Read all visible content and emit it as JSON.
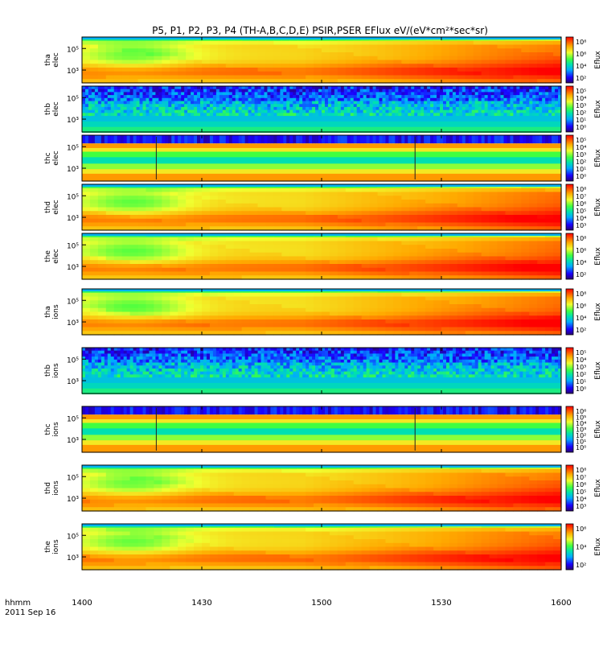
{
  "title": "P5, P1, P2, P3, P4  (TH-A,B,C,D,E)  PSIR,PSER EFlux eV/(eV*cm²*sec*sr)",
  "time_axis": {
    "label_line1": "hhmm",
    "label_line2": "2011 Sep 16",
    "ticks": [
      "1400",
      "1430",
      "1500",
      "1530",
      "1600"
    ]
  },
  "colorbar_label": "Eflux",
  "chart_data": [
    {
      "type": "heatmap",
      "probe": "tha",
      "species": "elec",
      "ylabel": [
        "tha",
        "elec"
      ],
      "yticks": [
        "10⁵",
        "10³"
      ],
      "cbar_ticks": [
        "10⁸",
        "10⁶",
        "10⁴",
        "10²"
      ],
      "pattern": "smooth"
    },
    {
      "type": "heatmap",
      "probe": "thb",
      "species": "elec",
      "ylabel": [
        "thb",
        "elec"
      ],
      "yticks": [
        "10⁵",
        "10³"
      ],
      "cbar_ticks": [
        "10⁵",
        "10⁴",
        "10³",
        "10²",
        "10¹",
        "10⁰"
      ],
      "pattern": "noise"
    },
    {
      "type": "heatmap",
      "probe": "thc",
      "species": "elec",
      "ylabel": [
        "thc",
        "elec"
      ],
      "yticks": [
        "10⁵",
        "10³"
      ],
      "cbar_ticks": [
        "10⁵",
        "10⁴",
        "10³",
        "10²",
        "10¹",
        "10⁰"
      ],
      "pattern": "bands"
    },
    {
      "type": "heatmap",
      "probe": "thd",
      "species": "elec",
      "ylabel": [
        "thd",
        "elec"
      ],
      "yticks": [
        "10⁵",
        "10³"
      ],
      "cbar_ticks": [
        "10⁸",
        "10⁷",
        "10⁶",
        "10⁵",
        "10⁴",
        "10³"
      ],
      "pattern": "smooth"
    },
    {
      "type": "heatmap",
      "probe": "the",
      "species": "elec",
      "ylabel": [
        "the",
        "elec"
      ],
      "yticks": [
        "10⁵",
        "10³"
      ],
      "cbar_ticks": [
        "10⁸",
        "10⁶",
        "10⁴",
        "10²"
      ],
      "pattern": "smooth"
    },
    {
      "type": "heatmap",
      "probe": "tha",
      "species": "ions",
      "ylabel": [
        "tha",
        "ions"
      ],
      "yticks": [
        "10⁵",
        "10³"
      ],
      "cbar_ticks": [
        "10⁸",
        "10⁶",
        "10⁴",
        "10²"
      ],
      "pattern": "smooth"
    },
    {
      "type": "heatmap",
      "probe": "thb",
      "species": "ions",
      "ylabel": [
        "thb",
        "ions"
      ],
      "yticks": [
        "10⁵",
        "10³"
      ],
      "cbar_ticks": [
        "10⁵",
        "10⁴",
        "10³",
        "10²",
        "10¹",
        "10⁰"
      ],
      "pattern": "noise"
    },
    {
      "type": "heatmap",
      "probe": "thc",
      "species": "ions",
      "ylabel": [
        "thc",
        "ions"
      ],
      "yticks": [
        "10⁵",
        "10³"
      ],
      "cbar_ticks": [
        "10⁶",
        "10⁵",
        "10⁴",
        "10³",
        "10²",
        "10¹",
        "10⁰"
      ],
      "pattern": "bands"
    },
    {
      "type": "heatmap",
      "probe": "thd",
      "species": "ions",
      "ylabel": [
        "thd",
        "ions"
      ],
      "yticks": [
        "10⁵",
        "10³"
      ],
      "cbar_ticks": [
        "10⁸",
        "10⁷",
        "10⁶",
        "10⁵",
        "10⁴",
        "10³"
      ],
      "pattern": "smooth"
    },
    {
      "type": "heatmap",
      "probe": "the",
      "species": "ions",
      "ylabel": [
        "the",
        "ions"
      ],
      "yticks": [
        "10⁵",
        "10³"
      ],
      "cbar_ticks": [
        "10⁶",
        "10⁴",
        "10²"
      ],
      "pattern": "smooth"
    }
  ]
}
